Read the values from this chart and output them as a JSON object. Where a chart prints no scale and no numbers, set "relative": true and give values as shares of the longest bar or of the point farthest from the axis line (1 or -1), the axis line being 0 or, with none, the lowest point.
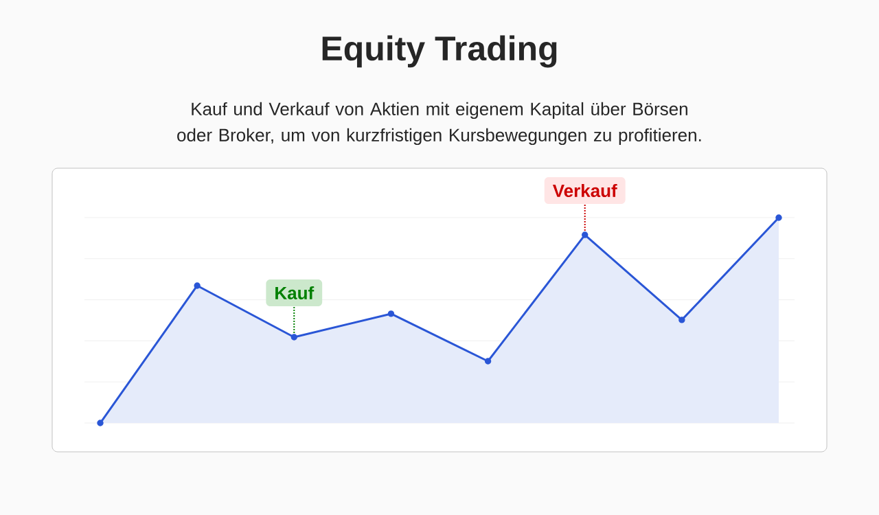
{
  "chart_data": {
    "type": "area",
    "title": "Equity Trading",
    "subtitle": "Kauf und Verkauf von Aktien mit eigenem Kapital über Börsen oder Broker, um von kurzfristigen Kursbewegungen zu profitieren.",
    "categories": [
      null,
      null,
      null,
      null,
      null,
      null,
      null,
      null
    ],
    "values": [
      0,
      0.669,
      0.418,
      0.532,
      0.301,
      0.916,
      0.502,
      1
    ],
    "color": "#2a56d6",
    "relative": true,
    "grid": "y",
    "marker": "circle",
    "annotations": [
      {
        "text": "Kauf",
        "y": 0.418
      },
      {
        "text": "Verkauf",
        "y": 0.916
      }
    ]
  }
}
